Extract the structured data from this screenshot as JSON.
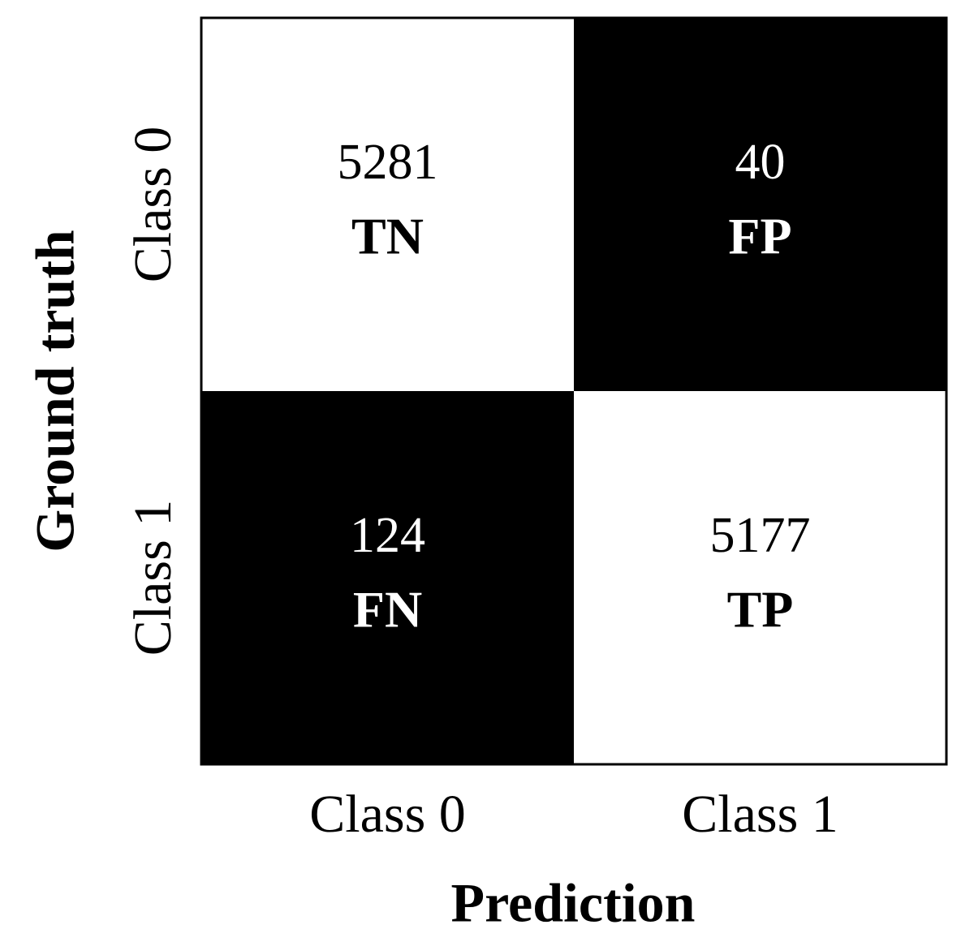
{
  "chart_data": {
    "type": "heatmap",
    "x_label": "Prediction",
    "y_label": "Ground truth",
    "categories": [
      "Class 0",
      "Class 1"
    ],
    "y_categories": [
      "Class 0",
      "Class 1"
    ],
    "values": [
      [
        5281,
        40
      ],
      [
        124,
        5177
      ]
    ],
    "cell_labels": [
      [
        "TN",
        "FP"
      ],
      [
        "FN",
        "TP"
      ]
    ],
    "cell_colors": [
      [
        "#ffffff",
        "#000000"
      ],
      [
        "#000000",
        "#ffffff"
      ]
    ]
  }
}
